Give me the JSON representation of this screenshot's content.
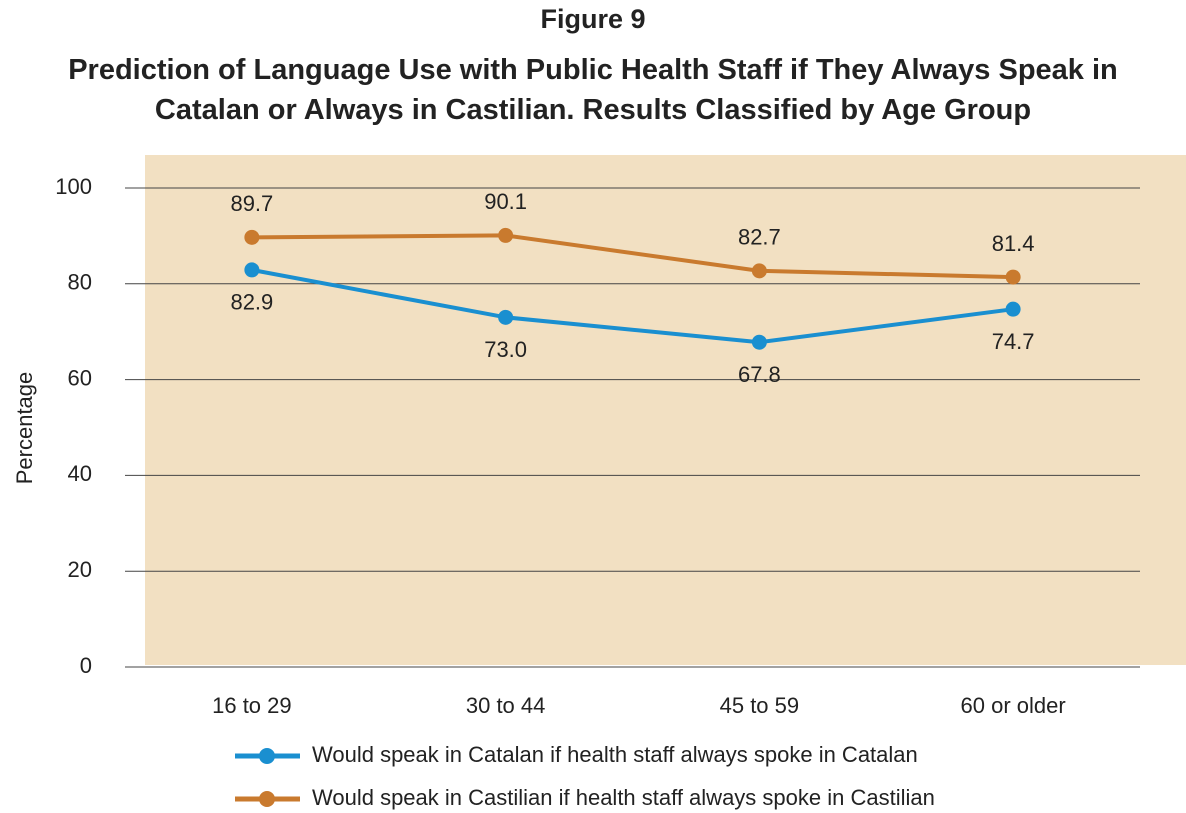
{
  "chart_data": {
    "type": "line",
    "title": "Figure 9",
    "subtitle": "Prediction of Language Use with Public Health Staff if They Always Speak in Catalan or Always in Castilian. Results Classified by Age Group",
    "y_label": "Percentage",
    "categories": [
      "16 to 29",
      "30 to 44",
      "45 to 59",
      "60 or older"
    ],
    "series": [
      {
        "name": "Would speak in Catalan if health staff always spoke in Catalan",
        "color": "#1a8fd0",
        "values": [
          82.9,
          73.0,
          67.8,
          74.7
        ],
        "value_labels": [
          "82.9",
          "73.0",
          "67.8",
          "74.7"
        ]
      },
      {
        "name": "Would speak in Castilian if health staff always spoke in Castilian",
        "color": "#c97a2e",
        "values": [
          89.7,
          90.1,
          82.7,
          81.4
        ],
        "value_labels": [
          "89.7",
          "90.1",
          "82.7",
          "81.4"
        ]
      }
    ],
    "ylim": [
      0,
      100
    ],
    "yticks": [
      0,
      20,
      40,
      60,
      80,
      100
    ],
    "grid": true,
    "legend": "bottom"
  }
}
